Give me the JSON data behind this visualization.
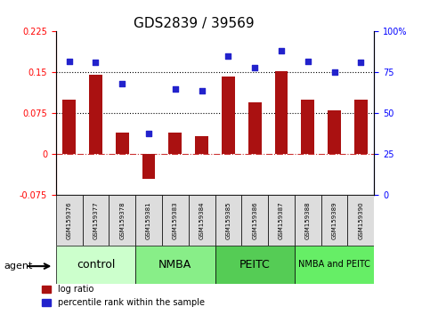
{
  "title": "GDS2839 / 39569",
  "samples": [
    "GSM159376",
    "GSM159377",
    "GSM159378",
    "GSM159381",
    "GSM159383",
    "GSM159384",
    "GSM159385",
    "GSM159386",
    "GSM159387",
    "GSM159388",
    "GSM159389",
    "GSM159390"
  ],
  "log_ratio": [
    0.1,
    0.145,
    0.04,
    -0.045,
    0.04,
    0.033,
    0.143,
    0.095,
    0.152,
    0.1,
    0.08,
    0.1
  ],
  "percentile_rank": [
    82,
    81,
    68,
    38,
    65,
    64,
    85,
    78,
    88,
    82,
    75,
    81
  ],
  "groups": [
    {
      "label": "control",
      "start": 0,
      "end": 3,
      "color": "#ccffcc"
    },
    {
      "label": "NMBA",
      "start": 3,
      "end": 6,
      "color": "#88ee88"
    },
    {
      "label": "PEITC",
      "start": 6,
      "end": 9,
      "color": "#55cc55"
    },
    {
      "label": "NMBA and PEITC",
      "start": 9,
      "end": 12,
      "color": "#33dd33"
    }
  ],
  "ylim_left": [
    -0.075,
    0.225
  ],
  "ylim_right": [
    0,
    100
  ],
  "yticks_left": [
    -0.075,
    0,
    0.075,
    0.15,
    0.225
  ],
  "yticks_right": [
    0,
    25,
    50,
    75,
    100
  ],
  "hlines": [
    0.075,
    0.15
  ],
  "bar_color": "#aa1111",
  "dot_color": "#2222cc",
  "bg_color": "#ffffff",
  "bar_width": 0.5,
  "grid_color": "#cccccc",
  "zero_line_color": "#cc3333",
  "label_log_ratio": "log ratio",
  "label_percentile": "percentile rank within the sample",
  "agent_label": "agent",
  "group_label_fontsize": 9,
  "tick_fontsize": 7,
  "title_fontsize": 11
}
